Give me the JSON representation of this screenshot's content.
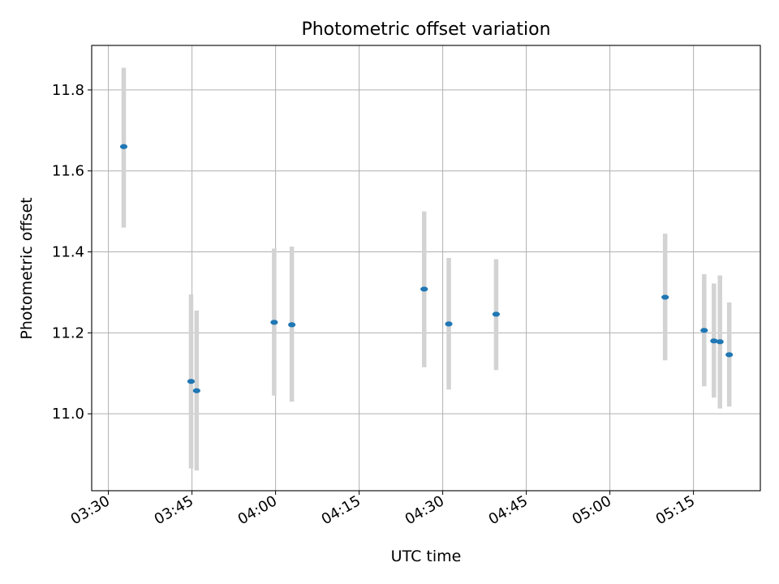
{
  "chart_data": {
    "type": "scatter",
    "title": "Photometric offset variation",
    "xlabel": "UTC time",
    "ylabel": "Photometric offset",
    "x_tick_labels": [
      "03:30",
      "03:45",
      "04:00",
      "04:15",
      "04:30",
      "04:45",
      "05:00",
      "05:15"
    ],
    "y_tick_labels": [
      "11.0",
      "11.2",
      "11.4",
      "11.6",
      "11.8"
    ],
    "y_ticks": [
      11.0,
      11.2,
      11.4,
      11.6,
      11.8
    ],
    "xlim": [
      "03:27",
      "05:27"
    ],
    "ylim": [
      10.81,
      11.91
    ],
    "grid": true,
    "points": [
      {
        "x": "03:32:45",
        "y": 11.66,
        "ylo": 11.46,
        "yhi": 11.855
      },
      {
        "x": "03:44:50",
        "y": 11.08,
        "ylo": 10.865,
        "yhi": 11.295
      },
      {
        "x": "03:45:50",
        "y": 11.057,
        "ylo": 10.86,
        "yhi": 11.255
      },
      {
        "x": "03:59:45",
        "y": 11.226,
        "ylo": 11.045,
        "yhi": 11.408
      },
      {
        "x": "04:02:55",
        "y": 11.22,
        "ylo": 11.03,
        "yhi": 11.413
      },
      {
        "x": "04:26:40",
        "y": 11.308,
        "ylo": 11.115,
        "yhi": 11.5
      },
      {
        "x": "04:31:05",
        "y": 11.222,
        "ylo": 11.06,
        "yhi": 11.385
      },
      {
        "x": "04:39:35",
        "y": 11.246,
        "ylo": 11.108,
        "yhi": 11.382
      },
      {
        "x": "05:09:55",
        "y": 11.288,
        "ylo": 11.132,
        "yhi": 11.445
      },
      {
        "x": "05:16:55",
        "y": 11.206,
        "ylo": 11.068,
        "yhi": 11.345
      },
      {
        "x": "05:18:40",
        "y": 11.18,
        "ylo": 11.04,
        "yhi": 11.322
      },
      {
        "x": "05:19:45",
        "y": 11.178,
        "ylo": 11.013,
        "yhi": 11.342
      },
      {
        "x": "05:21:25",
        "y": 11.146,
        "ylo": 11.018,
        "yhi": 11.275
      }
    ],
    "colors": {
      "marker": "#1f77b4",
      "errorbar": "#d3d3d3",
      "grid": "#b0b0b0",
      "axes": "#000000"
    }
  }
}
